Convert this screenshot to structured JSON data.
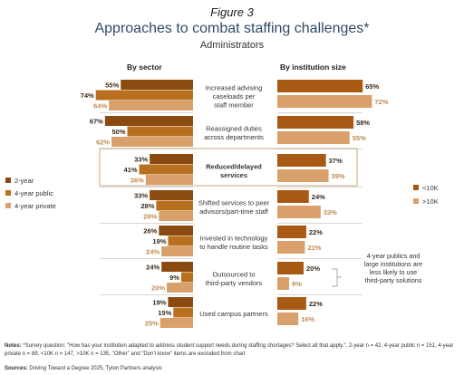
{
  "header": {
    "figure_number": "Figure 3",
    "title": "Approaches to combat staffing challenges*",
    "subtitle": "Administrators"
  },
  "chart_data": [
    {
      "type": "bar",
      "title": "By sector",
      "orientation": "horizontal",
      "categories": [
        "Increased advising caseloads per staff member",
        "Reassigned duties across departments",
        "Reduced/delayed services",
        "Shifted services to peer advisors/part-time staff",
        "Invested in technology to handle routine tasks",
        "Outsourced to third-party vendors",
        "Used campus partners"
      ],
      "series": [
        {
          "name": "2-year",
          "color": "#8b4a10",
          "values": [
            55,
            67,
            33,
            33,
            26,
            24,
            19
          ]
        },
        {
          "name": "4-year public",
          "color": "#b8701e",
          "values": [
            74,
            50,
            41,
            28,
            19,
            9,
            15
          ]
        },
        {
          "name": "4-year private",
          "color": "#d9a06c",
          "values": [
            64,
            62,
            36,
            26,
            24,
            20,
            25
          ]
        }
      ],
      "value_suffix": "%"
    },
    {
      "type": "bar",
      "title": "By institution size",
      "orientation": "horizontal",
      "categories": [
        "Increased advising caseloads per staff member",
        "Reassigned duties across departments",
        "Reduced/delayed services",
        "Shifted services to peer advisors/part-time staff",
        "Invested in technology to handle routine tasks",
        "Outsourced to third-party vendors",
        "Used campus partners"
      ],
      "series": [
        {
          "name": "<10K",
          "color": "#a85a14",
          "values": [
            65,
            58,
            37,
            24,
            22,
            20,
            22
          ]
        },
        {
          "name": ">10K",
          "color": "#d9a06c",
          "values": [
            72,
            55,
            39,
            33,
            21,
            9,
            16
          ]
        }
      ],
      "value_suffix": "%"
    }
  ],
  "labels": {
    "left_heading": "By sector",
    "right_heading": "By institution size",
    "categories_display": [
      [
        "Increased advising",
        "caseloads per",
        "staff member"
      ],
      [
        "Reassigned duties",
        "across departments"
      ],
      [
        "Reduced/delayed",
        "services"
      ],
      [
        "Shifted services to peer",
        "advisors/part-time staff"
      ],
      [
        "Invested in technology",
        "to handle routine tasks"
      ],
      [
        "Outsourced to",
        "third-party vendors"
      ],
      [
        "Used campus partners"
      ]
    ],
    "highlighted_category": "Reduced/delayed services",
    "annotation": [
      "4-year publics and",
      "large institutions are",
      "less likely to use",
      "third-party solutions"
    ],
    "legend_left": [
      "2-year",
      "4-year public",
      "4-year private"
    ],
    "legend_right": [
      "<10K",
      ">10K"
    ]
  },
  "footer": {
    "notes_label": "Notes:",
    "notes_text": " *Survey question: \"How has your institution adapted to address student support needs during staffing shortages? Select all that apply.\", 2-year n = 42, 4-year public n = 151, 4-year private n = 89, <10K n = 147, >10K n = 135, \"Other\" and \"Don't know\" items are excluded from chart",
    "sources_label": "Sources:",
    "sources_text": " Driving Toward a Degree 2025, Tyton Partners analysis"
  },
  "colors": {
    "title": "#2f4a66",
    "dark_brown": "#8b4a10",
    "mid_brown": "#b8701e",
    "light_brown": "#d9a06c",
    "guide_line": "#b0b0b0",
    "highlight_border": "#c9a97e"
  }
}
